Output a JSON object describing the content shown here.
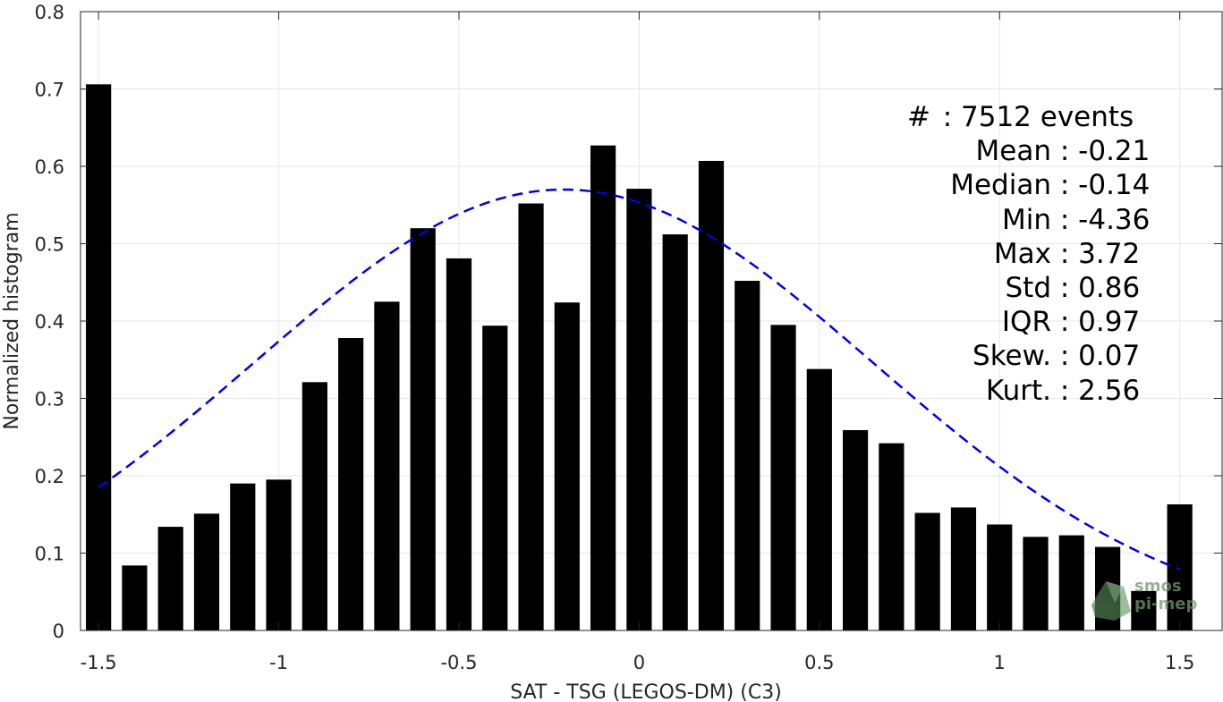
{
  "chart_data": {
    "type": "bar",
    "title": "",
    "xlabel": "SAT - TSG (LEGOS-DM) (C3)",
    "ylabel": "Normalized histogram",
    "xlim": [
      -1.55,
      1.62
    ],
    "ylim": [
      0,
      0.8
    ],
    "grid": true,
    "x_ticks": [
      -1.5,
      -1,
      -0.5,
      0,
      0.5,
      1,
      1.5
    ],
    "x_tick_labels": [
      "-1.5",
      "-1",
      "-0.5",
      "0",
      "0.5",
      "1",
      "1.5"
    ],
    "y_ticks": [
      0,
      0.1,
      0.2,
      0.3,
      0.4,
      0.5,
      0.6,
      0.7,
      0.8
    ],
    "y_tick_labels": [
      "0",
      "0.1",
      "0.2",
      "0.3",
      "0.4",
      "0.5",
      "0.6",
      "0.7",
      "0.8"
    ],
    "bar_width": 0.07,
    "series": [
      {
        "type": "bar",
        "color": "#000000",
        "x": [
          -1.5,
          -1.4,
          -1.3,
          -1.2,
          -1.1,
          -1.0,
          -0.9,
          -0.8,
          -0.7,
          -0.6,
          -0.5,
          -0.4,
          -0.3,
          -0.2,
          -0.1,
          0.0,
          0.1,
          0.2,
          0.3,
          0.4,
          0.5,
          0.6,
          0.7,
          0.8,
          0.9,
          1.0,
          1.1,
          1.2,
          1.3,
          1.4,
          1.5
        ],
        "values": [
          0.706,
          0.084,
          0.134,
          0.151,
          0.19,
          0.195,
          0.321,
          0.378,
          0.425,
          0.52,
          0.481,
          0.394,
          0.552,
          0.424,
          0.627,
          0.571,
          0.512,
          0.607,
          0.452,
          0.395,
          0.338,
          0.259,
          0.242,
          0.152,
          0.159,
          0.137,
          0.121,
          0.123,
          0.108,
          0.051,
          0.163
        ]
      },
      {
        "type": "line",
        "style": "dashed",
        "color": "#0000e6",
        "mean": -0.21,
        "std": 0.86,
        "scale": 0.57,
        "x_range": [
          -1.5,
          1.5
        ]
      }
    ]
  },
  "stats": {
    "rows": [
      {
        "label": "#",
        "sep": "  : ",
        "value": "7512 events"
      },
      {
        "label": "Mean",
        "sep": " : ",
        "value": "-0.21"
      },
      {
        "label": "Median",
        "sep": " : ",
        "value": "-0.14"
      },
      {
        "label": "Min",
        "sep": " : ",
        "value": "-4.36"
      },
      {
        "label": "Max",
        "sep": " : ",
        "value": "3.72"
      },
      {
        "label": "Std",
        "sep": " : ",
        "value": "0.86"
      },
      {
        "label": "IQR",
        "sep": " : ",
        "value": "0.97"
      },
      {
        "label": "Skew.",
        "sep": " : ",
        "value": "0.07"
      },
      {
        "label": "Kurt.",
        "sep": " : ",
        "value": "2.56"
      }
    ]
  },
  "watermark": {
    "line1": "smos",
    "line2": "pi-mep",
    "color": "#6f9b6f"
  }
}
